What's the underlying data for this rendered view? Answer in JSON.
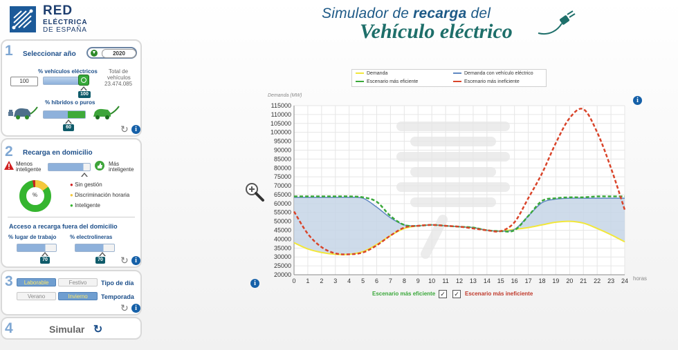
{
  "logo": {
    "line1": "RED",
    "line2": "ELÉCTRICA",
    "line3": "DE ESPAÑA"
  },
  "header": {
    "title_part1": "Simulador de ",
    "title_bold": "recarga",
    "title_part2": " del",
    "title_line2": "Vehículo eléctrico"
  },
  "panel1": {
    "number": "1",
    "title": "Seleccionar año",
    "year": "2020",
    "ev_label": "% vehículos eléctricos",
    "ev_input": "100",
    "ev_badge": "100",
    "total_label_1": "Total de",
    "total_label_2": "vehículos",
    "total_value": "23.474.085",
    "hybrid_label": "% híbridos o puros",
    "hybrid_badge": "60"
  },
  "panel2": {
    "number": "2",
    "title": "Recarga en domicilio",
    "less_smart_1": "Menos",
    "less_smart_2": "inteligente",
    "more_smart_1": "Más",
    "more_smart_2": "inteligente",
    "pie_label": "%",
    "legend": [
      {
        "label": "Sin gestión",
        "color": "#d01f1f"
      },
      {
        "label": "Discriminación horaria",
        "color": "#f5c83c"
      },
      {
        "label": "Inteligente",
        "color": "#35b52f"
      }
    ],
    "outside_title": "Acceso a recarga fuera del domicilio",
    "work_label": "% lugar de trabajo",
    "work_badge": "70",
    "station_label": "% electrolineras",
    "station_badge": "70"
  },
  "panel3": {
    "number": "3",
    "weekday": "Laborable",
    "holiday": "Festivo",
    "day_type_label": "Tipo de día",
    "summer": "Verano",
    "winter": "Invierno",
    "season_label": "Temporada"
  },
  "panel4": {
    "number": "4",
    "label": "Simular"
  },
  "legend": {
    "demand": "Demanda",
    "demand_ev": "Demanda con vehículo eléctrico",
    "efficient": "Escenario más eficiente",
    "inefficient": "Escenario más ineficiente"
  },
  "bottom": {
    "efficient": "Escenario más eficiente",
    "inefficient": "Escenario más ineficiente"
  },
  "colors": {
    "demand": "#f2e73a",
    "demand_ev": "#5f87c2",
    "efficient": "#3aa83a",
    "inefficient": "#d9442a",
    "fill": "#c6d5e6"
  },
  "chart_data": {
    "type": "line",
    "ylabel": "Demanda (MW)",
    "xlabel": "horas",
    "x": [
      0,
      1,
      2,
      3,
      4,
      5,
      6,
      7,
      8,
      9,
      10,
      11,
      12,
      13,
      14,
      15,
      16,
      17,
      18,
      19,
      20,
      21,
      22,
      23,
      24
    ],
    "ylim": [
      20000,
      115000
    ],
    "yticks": [
      20000,
      25000,
      30000,
      35000,
      40000,
      45000,
      50000,
      55000,
      60000,
      65000,
      70000,
      75000,
      80000,
      85000,
      90000,
      95000,
      100000,
      105000,
      110000,
      115000
    ],
    "series": [
      {
        "name": "Demanda",
        "values": [
          38000,
          34500,
          32500,
          31500,
          31500,
          33000,
          37000,
          42000,
          46000,
          47500,
          48000,
          47500,
          47000,
          46500,
          45000,
          44500,
          45500,
          46500,
          48000,
          49500,
          50000,
          49000,
          46000,
          42500,
          38500
        ]
      },
      {
        "name": "Demanda con vehículo eléctrico",
        "values": [
          63500,
          63500,
          63500,
          63500,
          63500,
          63000,
          58000,
          52000,
          48000,
          47500,
          48000,
          47500,
          47000,
          46500,
          45000,
          44500,
          45500,
          53000,
          60500,
          62500,
          63000,
          63000,
          63000,
          63000,
          63000
        ]
      },
      {
        "name": "Escenario más eficiente",
        "values": [
          64000,
          64000,
          64000,
          64000,
          64000,
          63500,
          61000,
          53000,
          48000,
          47500,
          48000,
          47500,
          47000,
          46500,
          45000,
          44500,
          45000,
          53000,
          61500,
          63000,
          63500,
          63500,
          64000,
          64000,
          64000
        ]
      },
      {
        "name": "Escenario más ineficiente",
        "values": [
          55500,
          43000,
          35500,
          32000,
          31500,
          32500,
          36500,
          42000,
          46500,
          47500,
          48000,
          47500,
          47000,
          46000,
          45000,
          44500,
          49500,
          63000,
          77000,
          94000,
          108000,
          113000,
          100000,
          80000,
          56500
        ]
      }
    ]
  }
}
